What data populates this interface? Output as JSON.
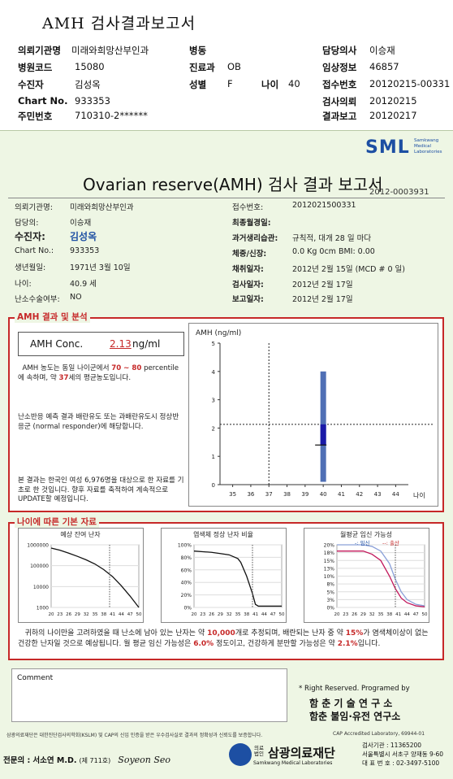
{
  "header": {
    "title": "AMH 검사결과보고서",
    "rows": [
      {
        "l1": "의뢰기관명",
        "v1": "미래와희망산부인과",
        "l2": "병동",
        "v2": "",
        "l3": "담당의사",
        "v3": "이승재"
      },
      {
        "l1": "병원코드",
        "v1": "15080",
        "l2": "진료과",
        "v2": "OB",
        "l3": "임상정보",
        "v3": "46857"
      },
      {
        "l1": "수진자",
        "v1": "김성옥",
        "l2": "성별",
        "v2": "F",
        "l2b": "나이",
        "v2b": "40",
        "l3": "접수번호",
        "v3": "20120215-00331"
      },
      {
        "l1": "Chart No.",
        "v1": "933353",
        "l3": "검사의뢰",
        "v3": "20120215"
      },
      {
        "l1": "주민번호",
        "v1": "710310-2******",
        "l3": "결과보고",
        "v3": "20120217"
      }
    ]
  },
  "report": {
    "logo": "SML",
    "logo_sub": "Samkwang Medical Laboratories",
    "title": "Ovarian reserve(AMH) 검사 결과 보고서",
    "number": "2012-0003931",
    "info_left": [
      {
        "label": "의뢰기관명:",
        "value": "미래와희망산부인과"
      },
      {
        "label": "담당의:",
        "value": "이승재"
      },
      {
        "label": "수진자:",
        "value": "김성옥"
      },
      {
        "label": "Chart No.:",
        "value": "933353"
      },
      {
        "label": "생년월일:",
        "value": "1971년 3월 10일"
      },
      {
        "label": "나이:",
        "value": "40.9 세"
      },
      {
        "label": "난소수술여부:",
        "value": "NO"
      }
    ],
    "info_right": [
      {
        "label": "접수번호:",
        "value": "2012021500331"
      },
      {
        "label": "최종월경일:",
        "value": ""
      },
      {
        "label": "과거생리습관:",
        "value": "규칙적, 대개  28 일 마다"
      },
      {
        "label": "체중/신장:",
        "value": "0.0 Kg        0cm    BMI:   0.00"
      },
      {
        "label": "채취일자:",
        "value": "2012년 2월 15일   (MCD # 0 일)"
      },
      {
        "label": "검사일자:",
        "value": "2012년 2월 17일"
      },
      {
        "label": "보고일자:",
        "value": "2012년 2월 17일"
      }
    ]
  },
  "amh": {
    "section_title": "AMH 결과 및 분석",
    "conc_label": "AMH Conc.",
    "conc_value": "2.13",
    "conc_unit": "ng/ml",
    "para1_a": "AMH 농도는 동일 나이군에서",
    "para1_pct": "70 ~  80",
    "para1_b": "percentile에 속하며,  약",
    "para1_age": "37",
    "para1_c": "세의 평균농도입니다.",
    "para2": "난소반응 예측 결과 배란유도 또는 과배란유도시 정상반응군 (normal responder)에 해당합니다.",
    "para3": "본 결과는 한국인 여성 6,976명을 대상으로 한 자료를 기초로 한 것입니다. 향후 자료를 축적하여 계속적으로 UPDATE할 예정입니다."
  },
  "chart_data": [
    {
      "type": "bar",
      "title": "",
      "ylabel": "AMH (ng/ml)",
      "xlabel": "나이",
      "x_ticks": [
        35,
        36,
        37,
        38,
        39,
        40,
        41,
        42,
        43,
        44
      ],
      "y_ticks": [
        0,
        1,
        2,
        3,
        4,
        5
      ],
      "ylim": [
        0,
        5
      ],
      "xlim": [
        34.3,
        44.7
      ],
      "grid": false,
      "reference_age": 37,
      "patient_age": 40,
      "patient_value": 2.13,
      "range_low": 0.1,
      "range_high": 4.0,
      "iqr_low": 1.4,
      "iqr_high": 2.13
    },
    {
      "type": "line",
      "title": "예상 잔여 난자",
      "x_ticks": [
        20,
        23,
        26,
        29,
        32,
        35,
        38,
        41,
        44,
        47,
        50
      ],
      "y_ticks": [
        "1000000",
        "100000",
        "10000",
        "1000"
      ],
      "yscale": "log",
      "series": [
        {
          "x": [
            20,
            23,
            26,
            29,
            32,
            35,
            38,
            41,
            44,
            47,
            50
          ],
          "y": [
            700000,
            550000,
            400000,
            280000,
            190000,
            120000,
            65000,
            30000,
            11000,
            3500,
            1000
          ]
        }
      ]
    },
    {
      "type": "line",
      "title": "염색체 정상 난자 비율",
      "x_ticks": [
        20,
        23,
        26,
        29,
        32,
        35,
        38,
        41,
        44,
        47,
        50
      ],
      "y_ticks": [
        "100%",
        "80%",
        "60%",
        "40%",
        "20%",
        "0%"
      ],
      "ylim": [
        0,
        100
      ],
      "series": [
        {
          "x": [
            20,
            23,
            26,
            29,
            32,
            35,
            36,
            38,
            40,
            41,
            42,
            50
          ],
          "y": [
            90,
            89,
            88,
            86,
            84,
            78,
            72,
            50,
            22,
            5,
            2,
            2
          ]
        }
      ]
    },
    {
      "type": "line",
      "title": "월평균 임신 가능성",
      "legend": [
        "-: 임신",
        "--: 출산"
      ],
      "x_ticks": [
        20,
        23,
        26,
        29,
        32,
        35,
        38,
        41,
        44,
        47,
        50
      ],
      "y_ticks": [
        "20%",
        "18%",
        "15%",
        "13%",
        "10%",
        "8%",
        "5%",
        "3%",
        "0%"
      ],
      "ylim": [
        0,
        20
      ],
      "series": [
        {
          "name": "임신",
          "x": [
            20,
            29,
            32,
            35,
            38,
            40,
            42,
            44,
            47,
            50
          ],
          "y": [
            20,
            20,
            19.5,
            18,
            14,
            9,
            5,
            2.5,
            1,
            0.5
          ]
        },
        {
          "name": "출산",
          "x": [
            20,
            29,
            32,
            35,
            38,
            40,
            42,
            44,
            47,
            50
          ],
          "y": [
            18,
            18,
            17,
            15,
            10,
            6,
            3,
            1.5,
            0.5,
            0.2
          ]
        }
      ]
    }
  ],
  "basic": {
    "section_title": "나이에 따른 기본 자료",
    "summary_a": "귀하의 나이만을 고려하였을 때 난소에 남아 있는 난자는 약",
    "summary_num1": "10,000",
    "summary_b": "개로 추정되며, 배란되는 난자 중 약",
    "summary_num2": "15%",
    "summary_c": "가 염색체이상이 없는 건강한 난자일 것으로 예상됩니다. 월 평균 임신 가능성은",
    "summary_num3": "6.0%",
    "summary_d": "정도이고, 건강하게 분만할 가능성은 약",
    "summary_num4": "2.1%",
    "summary_e": "입니다."
  },
  "footer": {
    "comment_label": "Comment",
    "rights": "* Right Reserved. Programed by",
    "inst1": "함 춘  기 술  연 구 소",
    "inst2": "함춘 불임·유전 연구소",
    "cert_note": "삼광의료재단은 대한진단검사의학회(KSLM) 및 CAP의 신임 인증을 받은 우수검사실로 결과의 정확성과 신뢰도를 보증합니다.",
    "cap": "CAP  Accredited  Laboratory,  69944-01",
    "specialist_label": "전문의 :",
    "specialist_name": "서소연 M.D.",
    "specialist_no": "(제 711호)",
    "signature": "Soyeon Seo",
    "foundation": "삼광의료재단",
    "foundation_prefix": "의료법인",
    "foundation_en": "Samkwang Medical Laboratories",
    "code": "검사기관 : 11365200",
    "address": "서울특별시 서초구 양재동 9-60",
    "phone": "대 표 번 호 : 02-3497-5100"
  }
}
